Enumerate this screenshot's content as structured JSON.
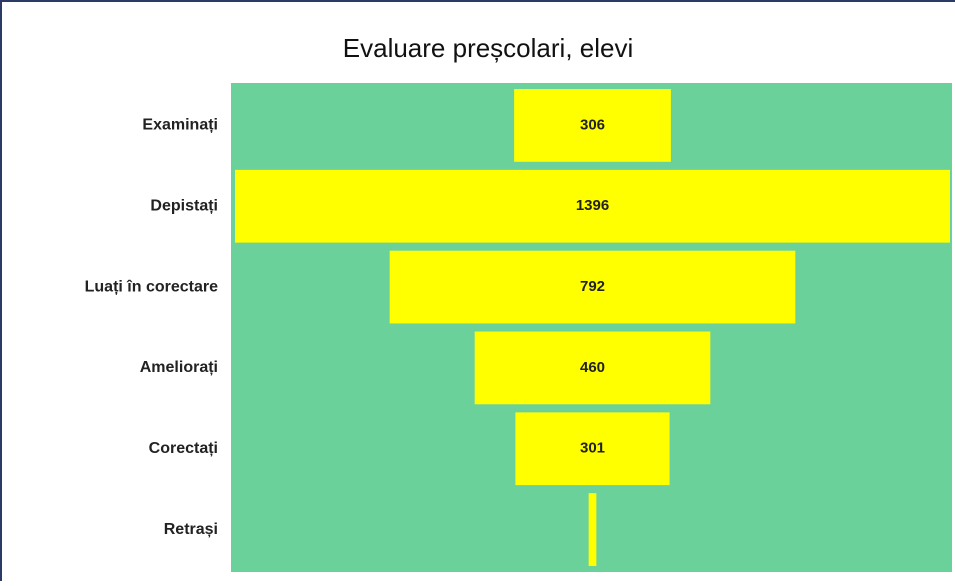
{
  "chart_data": {
    "type": "funnel",
    "title": "Evaluare preșcolari, elevi",
    "categories": [
      "Examinați",
      "Depistați",
      "Luați în corectare",
      "Ameliorați",
      "Corectați",
      "Retrași"
    ],
    "values": [
      306,
      1396,
      792,
      460,
      301,
      15
    ],
    "value_labels": [
      "306",
      "1396",
      "792",
      "460",
      "301",
      null
    ],
    "color": "#ffff00",
    "background": "#6bd19a"
  }
}
